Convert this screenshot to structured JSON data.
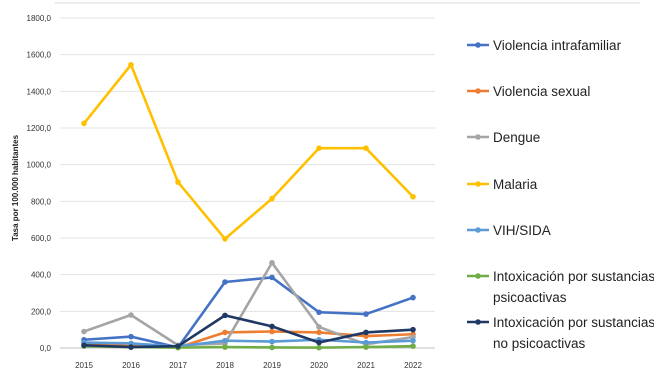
{
  "chart_data": {
    "type": "line",
    "title": "",
    "xlabel": "",
    "ylabel": "Tasa por 100.000 habitantes",
    "x": [
      "2015",
      "2016",
      "2017",
      "2018",
      "2019",
      "2020",
      "2021",
      "2022"
    ],
    "ylim": [
      0,
      1800
    ],
    "yticks": [
      "0,0",
      "200,0",
      "400,0",
      "600,0",
      "800,0",
      "1000,0",
      "1200,0",
      "1400,0",
      "1600,0",
      "1800,0"
    ],
    "grid": true,
    "legend_position": "right",
    "series": [
      {
        "name": "Violencia intrafamiliar",
        "color": "#4472C4",
        "values": [
          45,
          62,
          3,
          360,
          385,
          195,
          185,
          275
        ]
      },
      {
        "name": "Violencia sexual",
        "color": "#ED7D31",
        "values": [
          25,
          10,
          2,
          85,
          90,
          85,
          65,
          75
        ]
      },
      {
        "name": "Dengue",
        "color": "#A5A5A5",
        "values": [
          90,
          180,
          15,
          25,
          465,
          115,
          20,
          60
        ]
      },
      {
        "name": "Malaria",
        "color": "#FFC000",
        "values": [
          1225,
          1545,
          905,
          595,
          815,
          1090,
          1090,
          825
        ]
      },
      {
        "name": "VIH/SIDA",
        "color": "#5B9BD5",
        "values": [
          30,
          25,
          8,
          40,
          35,
          45,
          30,
          40
        ]
      },
      {
        "name": "Intoxicación por sustancias psicoactivas",
        "legend_lines": [
          "Intoxicación por sustancias",
          "psicoactivas"
        ],
        "color": "#70AD47",
        "values": [
          10,
          5,
          2,
          5,
          3,
          2,
          5,
          10
        ]
      },
      {
        "name": "Intoxicación por sustancias no psicoactivas",
        "legend_lines": [
          "Intoxicación por sustancias",
          "no psicoactivas"
        ],
        "color": "#1F3864",
        "values": [
          15,
          5,
          10,
          178,
          118,
          30,
          85,
          100
        ]
      }
    ]
  }
}
